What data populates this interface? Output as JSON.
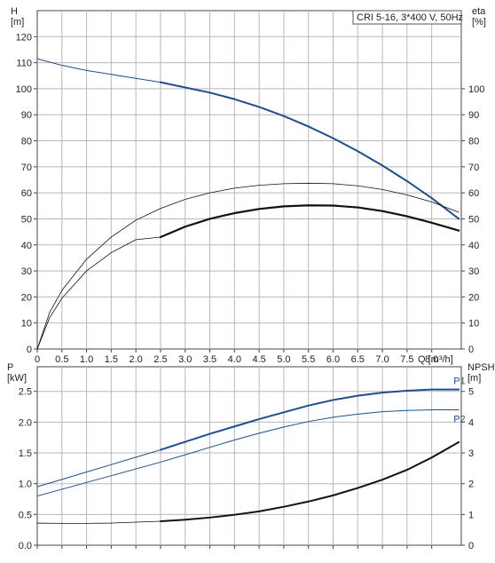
{
  "chart_data": [
    {
      "type": "line",
      "title": "CRI 5-16, 3*400 V, 50Hz",
      "xlabel": "Q [m³/h]",
      "ylabel_left": "H\n[m]",
      "ylabel_right": "eta\n[%]",
      "xlim": [
        0,
        8.6
      ],
      "ylim_left": [
        0,
        130
      ],
      "ylim_right": [
        0,
        130
      ],
      "grid": true,
      "x_ticks": [
        "0",
        "0.5",
        "1.0",
        "1.5",
        "2.0",
        "2.5",
        "3.0",
        "3.5",
        "4.0",
        "4.5",
        "5.0",
        "5.5",
        "6.0",
        "6.5",
        "7.0",
        "7.5",
        "8.0"
      ],
      "x_tick_values": [
        0,
        0.5,
        1.0,
        1.5,
        2.0,
        2.5,
        3.0,
        3.5,
        4.0,
        4.5,
        5.0,
        5.5,
        6.0,
        6.5,
        7.0,
        7.5,
        8.0
      ],
      "y_left_ticks": [
        "0",
        "10",
        "20",
        "30",
        "40",
        "50",
        "60",
        "70",
        "80",
        "90",
        "100",
        "110",
        "120"
      ],
      "y_left_values": [
        0,
        10,
        20,
        30,
        40,
        50,
        60,
        70,
        80,
        90,
        100,
        110,
        120
      ],
      "y_right_ticks": [
        "0",
        "10",
        "20",
        "30",
        "40",
        "50",
        "60",
        "70",
        "80",
        "90",
        "100"
      ],
      "y_right_values": [
        0,
        10,
        20,
        30,
        40,
        50,
        60,
        70,
        80,
        90,
        100
      ],
      "series": [
        {
          "color": "#1f4e8c",
          "axis": "left",
          "segments": [
            {
              "width": 1.0,
              "x": [
                0,
                0.5,
                1.0,
                1.5,
                2.0,
                2.5
              ],
              "y": [
                111.5,
                109.0,
                107.0,
                105.5,
                104.0,
                102.5
              ]
            },
            {
              "width": 2.0,
              "x": [
                2.5,
                3.0,
                3.5,
                4.0,
                4.5,
                5.0,
                5.5,
                6.0,
                6.5,
                7.0,
                7.5,
                8.0,
                8.55
              ],
              "y": [
                102.5,
                100.5,
                98.5,
                96.0,
                93.0,
                89.5,
                85.5,
                81.0,
                76.0,
                70.5,
                64.5,
                58.0,
                50.0
              ]
            }
          ]
        },
        {
          "color": "#111111",
          "axis": "right",
          "segments": [
            {
              "width": 0.8,
              "x": [
                0,
                0.25,
                0.5,
                1.0,
                1.5,
                2.0,
                2.5,
                3.0,
                3.5,
                4.0,
                4.5,
                5.0,
                5.5,
                6.0,
                6.5,
                7.0,
                7.5,
                8.0,
                8.55
              ],
              "y": [
                0,
                14.0,
                22.5,
                34.5,
                43.0,
                49.5,
                54.0,
                57.5,
                60.0,
                61.8,
                62.9,
                63.5,
                63.7,
                63.5,
                62.7,
                61.3,
                59.2,
                56.5,
                52.5
              ]
            }
          ]
        },
        {
          "color": "#111111",
          "axis": "right",
          "segments": [
            {
              "width": 0.8,
              "x": [
                0,
                0.25,
                0.5,
                1.0,
                1.5,
                2.0,
                2.5
              ],
              "y": [
                0,
                12.0,
                19.5,
                30.0,
                37.0,
                42.0,
                43.0
              ]
            },
            {
              "width": 2.2,
              "x": [
                2.5,
                3.0,
                3.5,
                4.0,
                4.5,
                5.0,
                5.5,
                6.0,
                6.5,
                7.0,
                7.5,
                8.0,
                8.55
              ],
              "y": [
                43.0,
                47.0,
                50.0,
                52.2,
                53.8,
                54.8,
                55.2,
                55.1,
                54.4,
                53.0,
                51.0,
                48.5,
                45.5
              ]
            }
          ]
        }
      ]
    },
    {
      "type": "line",
      "ylabel_left": "P\n[kW]",
      "ylabel_right": "NPSH\n[m]",
      "xlim": [
        0,
        8.6
      ],
      "ylim_left": [
        0,
        2.9
      ],
      "ylim_right": [
        0,
        5.8
      ],
      "grid": true,
      "y_left_ticks": [
        "0.0",
        "0.5",
        "1.0",
        "1.5",
        "2.0",
        "2.5"
      ],
      "y_left_values": [
        0,
        0.5,
        1.0,
        1.5,
        2.0,
        2.5
      ],
      "y_right_ticks": [
        "0",
        "1",
        "2",
        "3",
        "4",
        "5"
      ],
      "y_right_values": [
        0,
        1,
        2,
        3,
        4,
        5
      ],
      "series": [
        {
          "name": "P1",
          "color": "#1f4e8c",
          "axis": "left",
          "segments": [
            {
              "width": 1.0,
              "x": [
                0,
                0.5,
                1.0,
                1.5,
                2.0,
                2.5
              ],
              "y": [
                0.95,
                1.07,
                1.19,
                1.31,
                1.43,
                1.55
              ]
            },
            {
              "width": 2.0,
              "x": [
                2.5,
                3.0,
                3.5,
                4.0,
                4.5,
                5.0,
                5.5,
                6.0,
                6.5,
                7.0,
                7.5,
                8.0,
                8.55
              ],
              "y": [
                1.55,
                1.68,
                1.81,
                1.93,
                2.05,
                2.16,
                2.27,
                2.36,
                2.43,
                2.48,
                2.51,
                2.53,
                2.53
              ]
            }
          ]
        },
        {
          "name": "P2",
          "color": "#1f4e8c",
          "axis": "left",
          "segments": [
            {
              "width": 1.0,
              "x": [
                0,
                0.5,
                1.0,
                1.5,
                2.0,
                2.5,
                3.0,
                3.5,
                4.0,
                4.5,
                5.0,
                5.5,
                6.0,
                6.5,
                7.0,
                7.5,
                8.0,
                8.55
              ],
              "y": [
                0.8,
                0.91,
                1.02,
                1.13,
                1.24,
                1.35,
                1.47,
                1.59,
                1.71,
                1.82,
                1.92,
                2.01,
                2.08,
                2.13,
                2.17,
                2.19,
                2.2,
                2.2
              ]
            }
          ]
        },
        {
          "color": "#111111",
          "axis": "right",
          "segments": [
            {
              "width": 0.8,
              "x": [
                0,
                0.5,
                1.0,
                1.5,
                2.0,
                2.5
              ],
              "y": [
                0.72,
                0.71,
                0.71,
                0.72,
                0.75,
                0.78
              ]
            },
            {
              "width": 2.0,
              "x": [
                2.5,
                3.0,
                3.5,
                4.0,
                4.5,
                5.0,
                5.5,
                6.0,
                6.5,
                7.0,
                7.5,
                8.0,
                8.55
              ],
              "y": [
                0.78,
                0.83,
                0.9,
                0.99,
                1.1,
                1.25,
                1.42,
                1.62,
                1.86,
                2.13,
                2.45,
                2.85,
                3.35
              ]
            }
          ]
        }
      ]
    }
  ]
}
